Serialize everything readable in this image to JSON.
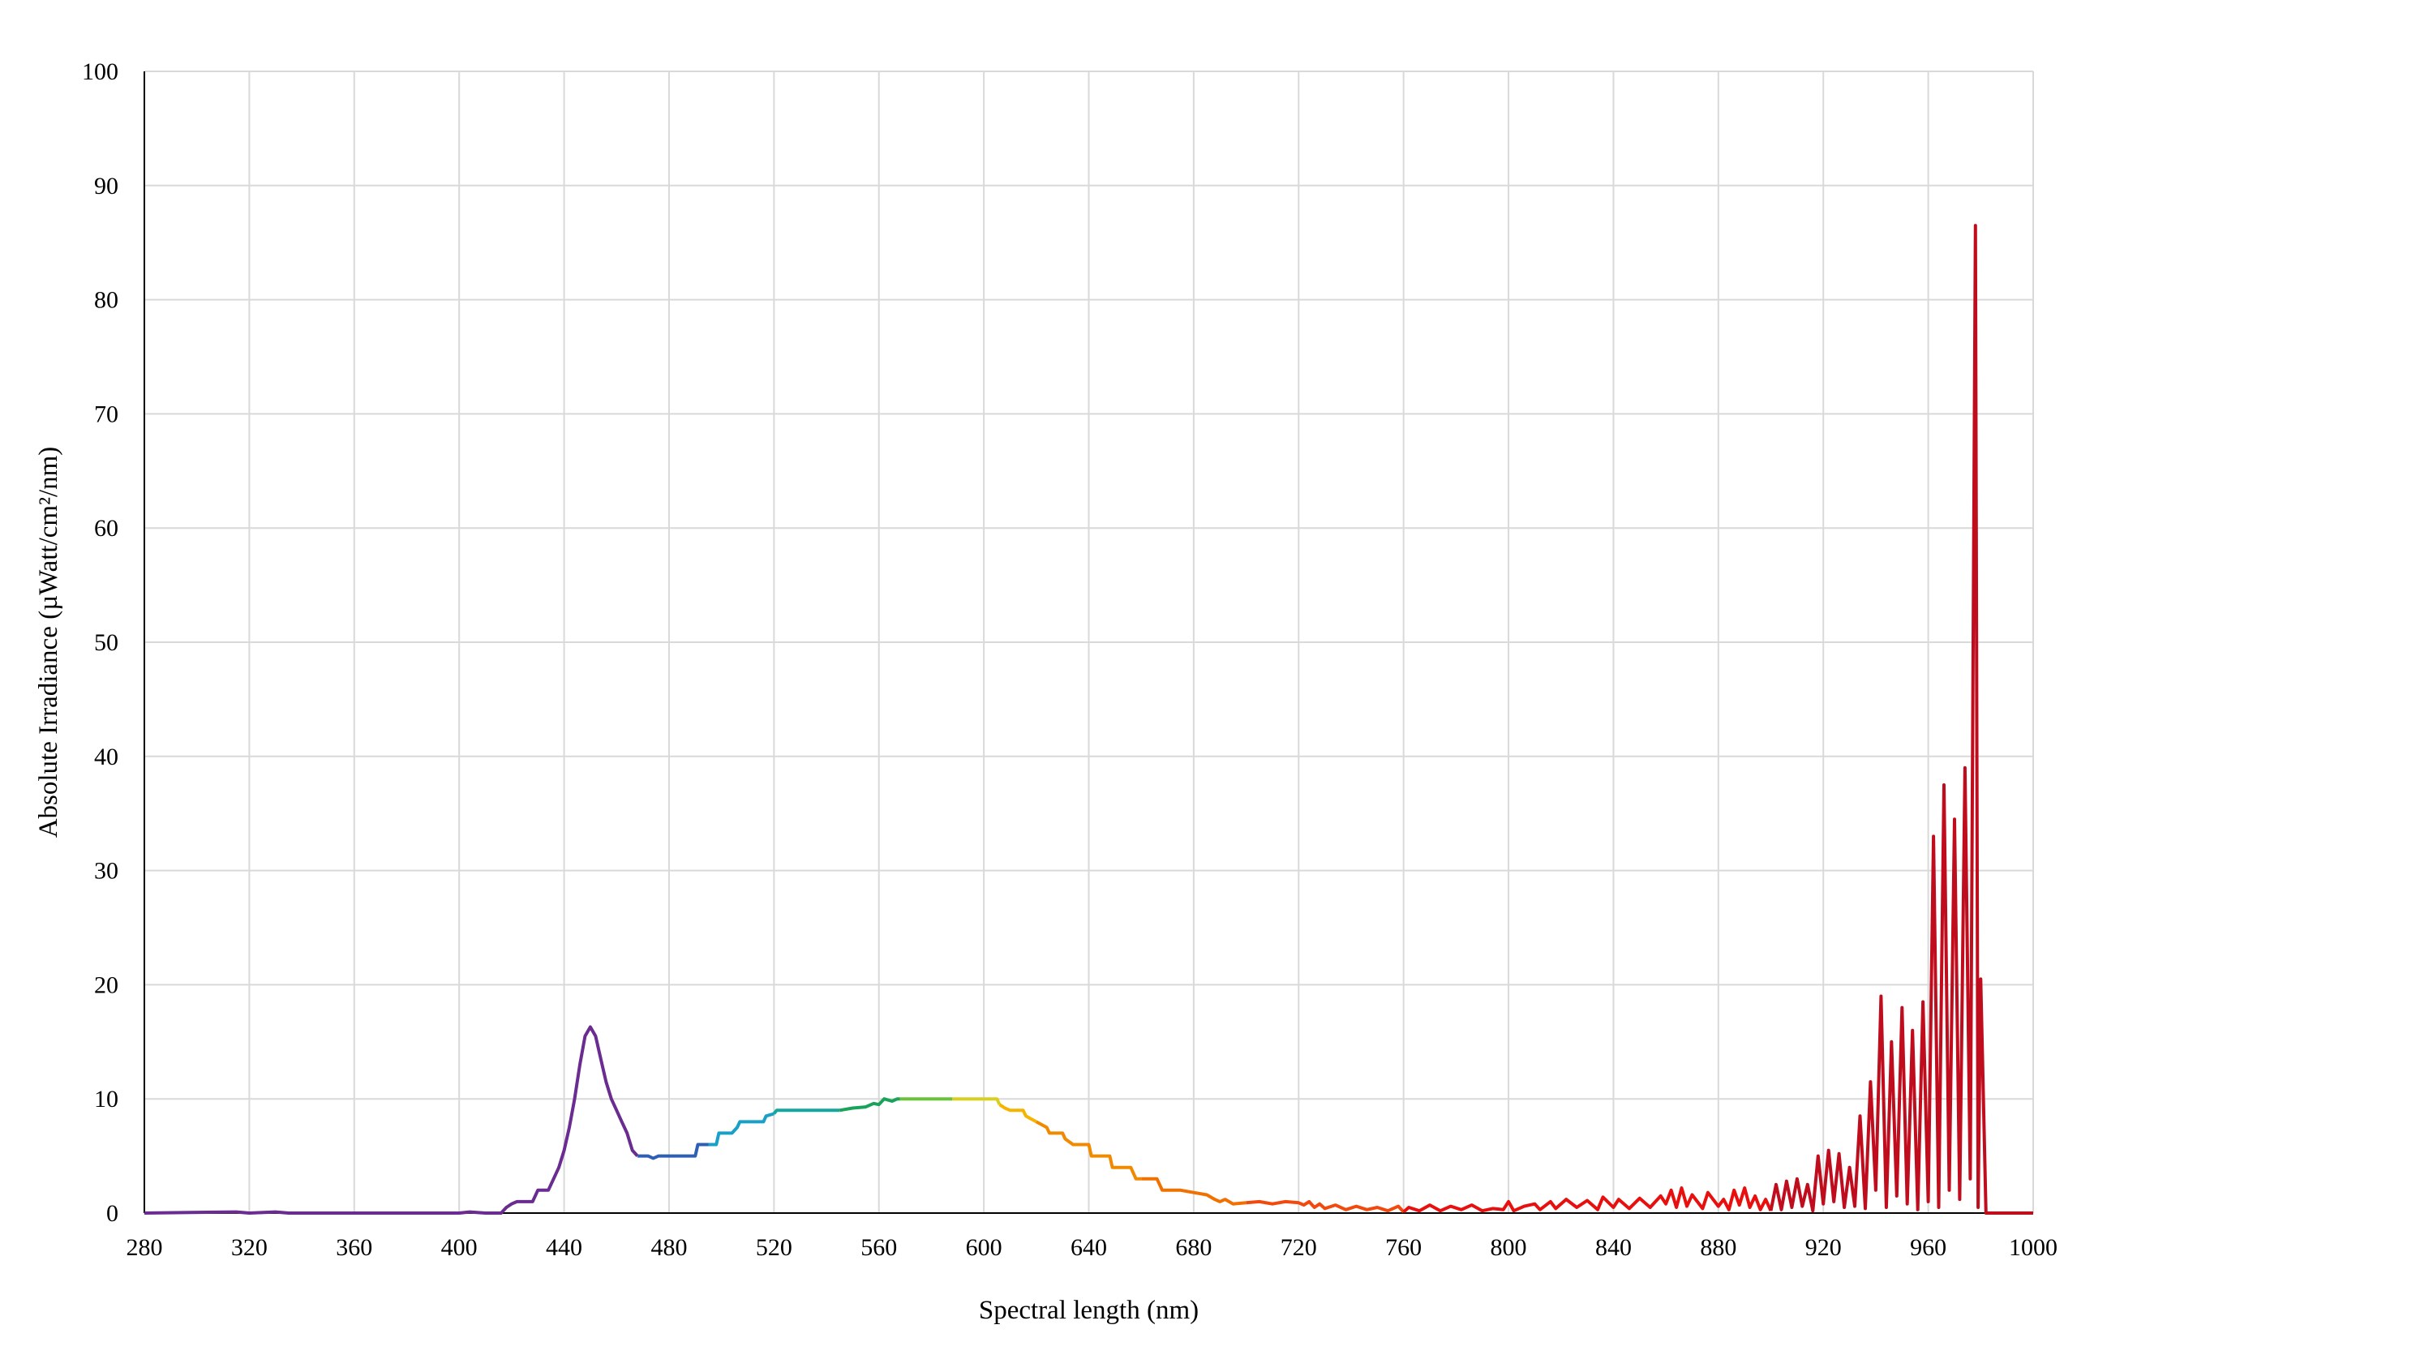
{
  "chart_data": {
    "type": "line",
    "title": "",
    "xlabel": "Spectral length (nm)",
    "ylabel": "Absolute Irradiance (µWatt/cm²/nm)",
    "xlim": [
      280,
      1000
    ],
    "ylim": [
      0,
      100
    ],
    "x_ticks": [
      "280",
      "320",
      "360",
      "400",
      "440",
      "480",
      "520",
      "560",
      "600",
      "640",
      "680",
      "720",
      "760",
      "800",
      "840",
      "880",
      "920",
      "960",
      "1000"
    ],
    "y_ticks": [
      "0",
      "10",
      "20",
      "30",
      "40",
      "50",
      "60",
      "70",
      "80",
      "90",
      "100"
    ],
    "grid": true,
    "legend": "none",
    "series": [
      {
        "color_segments": [
          {
            "from": 280,
            "to": 468,
            "color": "#6a2c91"
          },
          {
            "from": 468,
            "to": 495,
            "color": "#2f5fb3"
          },
          {
            "from": 495,
            "to": 520,
            "color": "#1aa0c8"
          },
          {
            "from": 520,
            "to": 545,
            "color": "#14a7a0"
          },
          {
            "from": 545,
            "to": 568,
            "color": "#18a25a"
          },
          {
            "from": 568,
            "to": 588,
            "color": "#6ac23a"
          },
          {
            "from": 588,
            "to": 606,
            "color": "#d8d020"
          },
          {
            "from": 606,
            "to": 620,
            "color": "#f5b400"
          },
          {
            "from": 620,
            "to": 660,
            "color": "#f08a00"
          },
          {
            "from": 660,
            "to": 700,
            "color": "#f07000"
          },
          {
            "from": 700,
            "to": 760,
            "color": "#f24a0e"
          },
          {
            "from": 760,
            "to": 900,
            "color": "#e8100e"
          },
          {
            "from": 900,
            "to": 1000,
            "color": "#c00d1e"
          }
        ],
        "points": [
          [
            280,
            0
          ],
          [
            315,
            0.1
          ],
          [
            320,
            0
          ],
          [
            330,
            0.1
          ],
          [
            335,
            0
          ],
          [
            400,
            0
          ],
          [
            404,
            0.1
          ],
          [
            410,
            0
          ],
          [
            416,
            0
          ],
          [
            418,
            0.5
          ],
          [
            420,
            0.8
          ],
          [
            422,
            1
          ],
          [
            428,
            1
          ],
          [
            430,
            2
          ],
          [
            434,
            2
          ],
          [
            436,
            3
          ],
          [
            438,
            4
          ],
          [
            440,
            5.5
          ],
          [
            442,
            7.5
          ],
          [
            444,
            10
          ],
          [
            446,
            13
          ],
          [
            448,
            15.5
          ],
          [
            450,
            16.3
          ],
          [
            452,
            15.5
          ],
          [
            454,
            13.5
          ],
          [
            456,
            11.5
          ],
          [
            458,
            10
          ],
          [
            460,
            9
          ],
          [
            462,
            8
          ],
          [
            464,
            7
          ],
          [
            466,
            5.5
          ],
          [
            468,
            5
          ],
          [
            472,
            5
          ],
          [
            474,
            4.8
          ],
          [
            476,
            5
          ],
          [
            480,
            5
          ],
          [
            490,
            5
          ],
          [
            491,
            6
          ],
          [
            498,
            6
          ],
          [
            499,
            7
          ],
          [
            504,
            7
          ],
          [
            506,
            7.5
          ],
          [
            507,
            8
          ],
          [
            516,
            8
          ],
          [
            517,
            8.5
          ],
          [
            520,
            8.7
          ],
          [
            521,
            9
          ],
          [
            545,
            9
          ],
          [
            550,
            9.2
          ],
          [
            555,
            9.3
          ],
          [
            558,
            9.6
          ],
          [
            560,
            9.5
          ],
          [
            562,
            10
          ],
          [
            565,
            9.8
          ],
          [
            567,
            10
          ],
          [
            570,
            10
          ],
          [
            605,
            10
          ],
          [
            606,
            9.5
          ],
          [
            608,
            9.2
          ],
          [
            610,
            9
          ],
          [
            615,
            9
          ],
          [
            616,
            8.5
          ],
          [
            620,
            8
          ],
          [
            624,
            7.5
          ],
          [
            625,
            7
          ],
          [
            630,
            7
          ],
          [
            631,
            6.5
          ],
          [
            634,
            6
          ],
          [
            640,
            6
          ],
          [
            641,
            5
          ],
          [
            648,
            5
          ],
          [
            649,
            4
          ],
          [
            656,
            4
          ],
          [
            658,
            3
          ],
          [
            666,
            3
          ],
          [
            668,
            2
          ],
          [
            670,
            2
          ],
          [
            675,
            2
          ],
          [
            680,
            1.8
          ],
          [
            685,
            1.6
          ],
          [
            688,
            1.2
          ],
          [
            690,
            1
          ],
          [
            692,
            1.2
          ],
          [
            695,
            0.8
          ],
          [
            700,
            0.9
          ],
          [
            705,
            1
          ],
          [
            710,
            0.8
          ],
          [
            715,
            1
          ],
          [
            720,
            0.9
          ],
          [
            722,
            0.7
          ],
          [
            724,
            1
          ],
          [
            726,
            0.5
          ],
          [
            728,
            0.8
          ],
          [
            730,
            0.4
          ],
          [
            734,
            0.7
          ],
          [
            738,
            0.3
          ],
          [
            742,
            0.6
          ],
          [
            746,
            0.3
          ],
          [
            750,
            0.5
          ],
          [
            754,
            0.2
          ],
          [
            758,
            0.6
          ],
          [
            760,
            0.1
          ],
          [
            762,
            0.5
          ],
          [
            766,
            0.2
          ],
          [
            770,
            0.7
          ],
          [
            774,
            0.2
          ],
          [
            778,
            0.6
          ],
          [
            782,
            0.3
          ],
          [
            786,
            0.7
          ],
          [
            790,
            0.2
          ],
          [
            794,
            0.4
          ],
          [
            798,
            0.3
          ],
          [
            800,
            1
          ],
          [
            802,
            0.2
          ],
          [
            806,
            0.6
          ],
          [
            810,
            0.8
          ],
          [
            812,
            0.3
          ],
          [
            816,
            1
          ],
          [
            818,
            0.4
          ],
          [
            822,
            1.2
          ],
          [
            826,
            0.5
          ],
          [
            830,
            1.1
          ],
          [
            834,
            0.3
          ],
          [
            836,
            1.4
          ],
          [
            840,
            0.5
          ],
          [
            842,
            1.2
          ],
          [
            846,
            0.4
          ],
          [
            850,
            1.3
          ],
          [
            854,
            0.5
          ],
          [
            858,
            1.5
          ],
          [
            860,
            0.8
          ],
          [
            862,
            2
          ],
          [
            864,
            0.5
          ],
          [
            866,
            2.2
          ],
          [
            868,
            0.6
          ],
          [
            870,
            1.6
          ],
          [
            874,
            0.4
          ],
          [
            876,
            1.8
          ],
          [
            880,
            0.6
          ],
          [
            882,
            1.2
          ],
          [
            884,
            0.3
          ],
          [
            886,
            2
          ],
          [
            888,
            0.7
          ],
          [
            890,
            2.2
          ],
          [
            892,
            0.5
          ],
          [
            894,
            1.5
          ],
          [
            896,
            0.3
          ],
          [
            898,
            1.2
          ],
          [
            900,
            0.2
          ],
          [
            902,
            2.5
          ],
          [
            904,
            0.3
          ],
          [
            906,
            2.8
          ],
          [
            908,
            0.5
          ],
          [
            910,
            3
          ],
          [
            912,
            0.6
          ],
          [
            914,
            2.5
          ],
          [
            916,
            0.2
          ],
          [
            918,
            5
          ],
          [
            920,
            0.8
          ],
          [
            922,
            5.5
          ],
          [
            924,
            1
          ],
          [
            926,
            5.2
          ],
          [
            928,
            0.5
          ],
          [
            930,
            4
          ],
          [
            932,
            0.6
          ],
          [
            934,
            8.5
          ],
          [
            936,
            0.4
          ],
          [
            938,
            11.5
          ],
          [
            940,
            2
          ],
          [
            942,
            19
          ],
          [
            944,
            0.5
          ],
          [
            946,
            15
          ],
          [
            948,
            1.5
          ],
          [
            950,
            18
          ],
          [
            952,
            0.8
          ],
          [
            954,
            16
          ],
          [
            956,
            0.3
          ],
          [
            958,
            18.5
          ],
          [
            960,
            1
          ],
          [
            962,
            33
          ],
          [
            964,
            0.5
          ],
          [
            966,
            37.5
          ],
          [
            968,
            2
          ],
          [
            970,
            34.5
          ],
          [
            972,
            1.2
          ],
          [
            974,
            39
          ],
          [
            976,
            3
          ],
          [
            978,
            86.5
          ],
          [
            979,
            0.5
          ],
          [
            980,
            20.5
          ],
          [
            982,
            0
          ],
          [
            1000,
            0
          ]
        ]
      }
    ]
  }
}
